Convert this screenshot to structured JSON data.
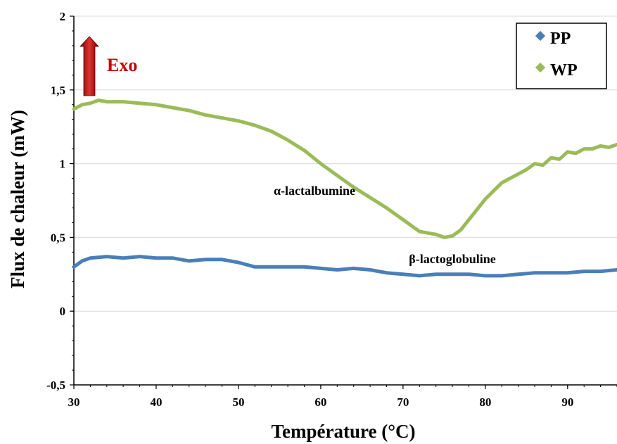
{
  "chart_data": {
    "type": "line",
    "title": "",
    "xlabel": "Température (°C)",
    "ylabel": "Flux de chaleur (mW)",
    "xlim": [
      30,
      96
    ],
    "ylim": [
      -0.5,
      2
    ],
    "x_ticks": [
      "30",
      "40",
      "50",
      "60",
      "70",
      "80",
      "90"
    ],
    "y_ticks": [
      "-0,5",
      "0",
      "0,5",
      "1",
      "1,5",
      "2"
    ],
    "grid": "horizontal",
    "legend": {
      "placement": "top-right",
      "entries": [
        {
          "label": "PP",
          "color": "#4a7ebb"
        },
        {
          "label": "WP",
          "color": "#9bbb59"
        }
      ]
    },
    "series": [
      {
        "name": "PP",
        "color": "#4a7ebb",
        "x": [
          30,
          31,
          32,
          34,
          36,
          38,
          40,
          42,
          44,
          46,
          48,
          50,
          52,
          54,
          56,
          58,
          60,
          62,
          64,
          66,
          68,
          70,
          72,
          74,
          76,
          78,
          80,
          82,
          84,
          86,
          88,
          90,
          92,
          94,
          96
        ],
        "y": [
          0.3,
          0.34,
          0.36,
          0.37,
          0.36,
          0.37,
          0.36,
          0.36,
          0.34,
          0.35,
          0.35,
          0.33,
          0.3,
          0.3,
          0.3,
          0.3,
          0.29,
          0.28,
          0.29,
          0.28,
          0.26,
          0.25,
          0.24,
          0.25,
          0.25,
          0.25,
          0.24,
          0.24,
          0.25,
          0.26,
          0.26,
          0.26,
          0.27,
          0.27,
          0.28
        ]
      },
      {
        "name": "WP",
        "color": "#9bbb59",
        "x": [
          30,
          31,
          32,
          33,
          34,
          36,
          38,
          40,
          42,
          44,
          46,
          48,
          50,
          52,
          54,
          56,
          58,
          60,
          62,
          64,
          66,
          68,
          70,
          72,
          74,
          75,
          76,
          77,
          78,
          80,
          82,
          84,
          85,
          86,
          87,
          88,
          89,
          90,
          91,
          92,
          93,
          94,
          95,
          96
        ],
        "y": [
          1.37,
          1.4,
          1.41,
          1.43,
          1.42,
          1.42,
          1.41,
          1.4,
          1.38,
          1.36,
          1.33,
          1.31,
          1.29,
          1.26,
          1.22,
          1.16,
          1.09,
          1.0,
          0.92,
          0.84,
          0.77,
          0.7,
          0.62,
          0.54,
          0.52,
          0.5,
          0.51,
          0.55,
          0.62,
          0.76,
          0.87,
          0.93,
          0.96,
          1.0,
          0.99,
          1.04,
          1.03,
          1.08,
          1.07,
          1.1,
          1.1,
          1.12,
          1.11,
          1.13
        ]
      }
    ],
    "annotations": [
      {
        "text": "Exo",
        "color": "#c00000"
      },
      {
        "text": "α-lactalbumine",
        "x": 69,
        "y": 0.82
      },
      {
        "text": "β-lactoglobuline",
        "x": 74.5,
        "y": 0.35
      }
    ]
  }
}
